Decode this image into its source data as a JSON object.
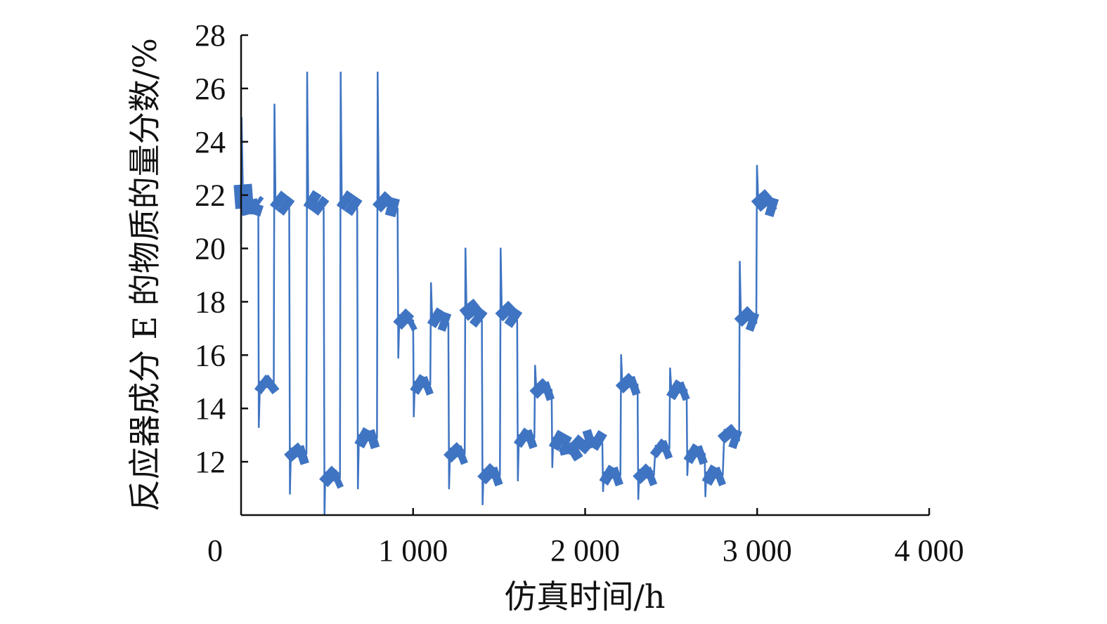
{
  "chart_data": {
    "type": "line",
    "title": "",
    "xlabel": "仿真时间/h",
    "ylabel": "反应器成分 E 的物质的量分数/%",
    "xlim": [
      0,
      4000
    ],
    "ylim": [
      10,
      28
    ],
    "x_ticks": [
      0,
      1000,
      2000,
      3000,
      4000
    ],
    "x_tick_labels": [
      "0",
      "1 000",
      "2 000",
      "3 000",
      "4 000"
    ],
    "y_ticks": [
      12,
      14,
      16,
      18,
      20,
      22,
      24,
      26,
      28
    ],
    "y_tick_labels": [
      "12",
      "14",
      "16",
      "18",
      "20",
      "22",
      "24",
      "26",
      "28"
    ],
    "grid": false,
    "legend": "none",
    "colors": {
      "series": "#3f74c2",
      "series_light": "#7fa8da",
      "axis": "#111111"
    },
    "series": [
      {
        "points": [
          [
            0,
            20.2
          ],
          [
            3,
            24.9
          ],
          [
            10,
            22.4
          ],
          [
            20,
            21.5
          ],
          [
            40,
            21.8
          ],
          [
            60,
            21.3
          ],
          [
            80,
            21.7
          ],
          [
            100,
            21.6
          ],
          [
            103,
            13.3
          ],
          [
            110,
            15.0
          ],
          [
            150,
            14.8
          ],
          [
            190,
            15.0
          ],
          [
            194,
            25.4
          ],
          [
            200,
            21.9
          ],
          [
            240,
            21.7
          ],
          [
            280,
            21.5
          ],
          [
            284,
            10.8
          ],
          [
            290,
            12.5
          ],
          [
            330,
            12.2
          ],
          [
            380,
            12.3
          ],
          [
            384,
            26.6
          ],
          [
            390,
            21.9
          ],
          [
            440,
            21.7
          ],
          [
            480,
            21.5
          ],
          [
            485,
            10.0
          ],
          [
            490,
            11.6
          ],
          [
            540,
            11.3
          ],
          [
            575,
            11.4
          ],
          [
            579,
            26.6
          ],
          [
            585,
            21.9
          ],
          [
            630,
            21.7
          ],
          [
            675,
            21.5
          ],
          [
            679,
            11.0
          ],
          [
            685,
            13.0
          ],
          [
            740,
            12.8
          ],
          [
            790,
            12.9
          ],
          [
            794,
            26.6
          ],
          [
            800,
            21.9
          ],
          [
            850,
            21.6
          ],
          [
            910,
            21.5
          ],
          [
            914,
            15.9
          ],
          [
            920,
            17.5
          ],
          [
            970,
            17.2
          ],
          [
            1000,
            17.3
          ],
          [
            1004,
            13.7
          ],
          [
            1010,
            15.0
          ],
          [
            1060,
            14.8
          ],
          [
            1100,
            14.9
          ],
          [
            1104,
            18.7
          ],
          [
            1110,
            17.5
          ],
          [
            1160,
            17.3
          ],
          [
            1205,
            17.2
          ],
          [
            1209,
            11.0
          ],
          [
            1215,
            12.5
          ],
          [
            1260,
            12.2
          ],
          [
            1300,
            12.3
          ],
          [
            1304,
            20.0
          ],
          [
            1310,
            17.9
          ],
          [
            1360,
            17.5
          ],
          [
            1400,
            17.3
          ],
          [
            1404,
            10.4
          ],
          [
            1410,
            11.7
          ],
          [
            1460,
            11.4
          ],
          [
            1505,
            11.5
          ],
          [
            1509,
            20.0
          ],
          [
            1515,
            17.8
          ],
          [
            1560,
            17.5
          ],
          [
            1605,
            17.3
          ],
          [
            1609,
            11.3
          ],
          [
            1615,
            13.0
          ],
          [
            1660,
            12.8
          ],
          [
            1705,
            12.9
          ],
          [
            1709,
            15.6
          ],
          [
            1715,
            14.9
          ],
          [
            1760,
            14.6
          ],
          [
            1805,
            14.7
          ],
          [
            1809,
            11.8
          ],
          [
            1815,
            12.9
          ],
          [
            1870,
            12.7
          ],
          [
            1900,
            12.6
          ],
          [
            1910,
            12.3
          ],
          [
            1960,
            12.5
          ],
          [
            2000,
            12.8
          ],
          [
            2050,
            12.9
          ],
          [
            2100,
            12.7
          ],
          [
            2104,
            10.9
          ],
          [
            2110,
            11.6
          ],
          [
            2160,
            11.4
          ],
          [
            2205,
            11.5
          ],
          [
            2209,
            16.0
          ],
          [
            2215,
            15.1
          ],
          [
            2260,
            14.8
          ],
          [
            2305,
            14.9
          ],
          [
            2309,
            10.6
          ],
          [
            2315,
            11.7
          ],
          [
            2360,
            11.4
          ],
          [
            2400,
            11.5
          ],
          [
            2404,
            12.0
          ],
          [
            2410,
            12.6
          ],
          [
            2450,
            12.4
          ],
          [
            2490,
            12.5
          ],
          [
            2494,
            15.5
          ],
          [
            2500,
            14.8
          ],
          [
            2550,
            14.6
          ],
          [
            2590,
            14.7
          ],
          [
            2594,
            11.5
          ],
          [
            2600,
            12.4
          ],
          [
            2650,
            12.2
          ],
          [
            2695,
            12.3
          ],
          [
            2699,
            10.7
          ],
          [
            2705,
            11.6
          ],
          [
            2760,
            11.4
          ],
          [
            2800,
            11.5
          ],
          [
            2804,
            12.2
          ],
          [
            2810,
            13.2
          ],
          [
            2850,
            12.9
          ],
          [
            2895,
            12.8
          ],
          [
            2899,
            19.5
          ],
          [
            2905,
            17.6
          ],
          [
            2950,
            17.3
          ],
          [
            2995,
            17.2
          ],
          [
            2999,
            23.1
          ],
          [
            3005,
            22.0
          ],
          [
            3060,
            21.6
          ],
          [
            3110,
            21.5
          ]
        ]
      }
    ]
  }
}
